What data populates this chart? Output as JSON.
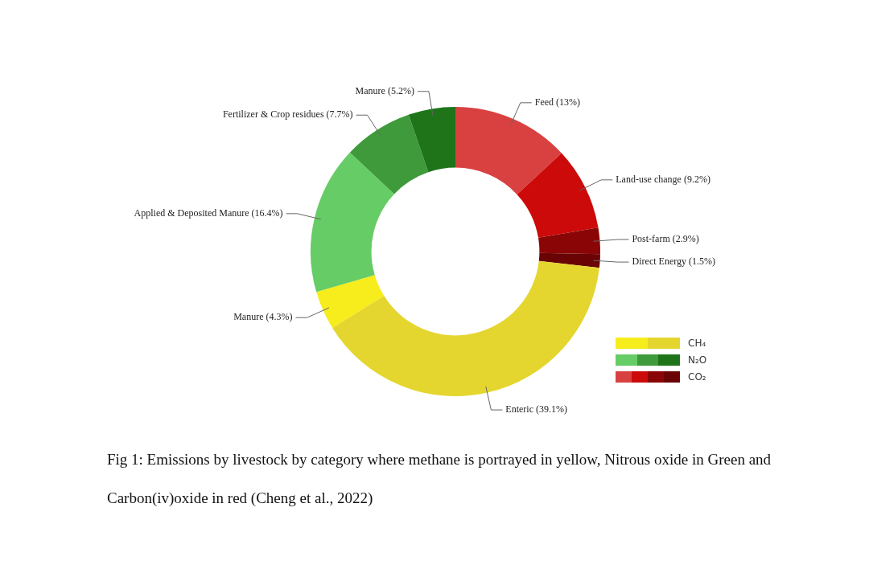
{
  "chart_data": {
    "type": "donut",
    "categories": [
      "Feed (13%)",
      "Land-use change (9.2%)",
      "Post-farm (2.9%)",
      "Direct Energy (1.5%)",
      "Enteric (39.1%)",
      "Manure (4.3%)",
      "Applied & Deposited Manure (16.4%)",
      "Fertilizer & Crop residues (7.7%)",
      "Manure (5.2%)"
    ],
    "values": [
      13,
      9.2,
      2.9,
      1.5,
      39.1,
      4.3,
      16.4,
      7.7,
      5.2
    ],
    "colors": [
      "#d94141",
      "#cc0a0a",
      "#8a0606",
      "#6a0404",
      "#e4d62e",
      "#f7ec1c",
      "#66cc66",
      "#3e9a3a",
      "#1f741a"
    ],
    "annotations": [
      "CH₄",
      "N₂O",
      "CO₂",
      "Fig 1: Emissions by livestock by category where methane is portrayed in yellow, Nitrous oxide in Green and Carbon(iv)oxide in red (Cheng et al., 2022)"
    ]
  }
}
